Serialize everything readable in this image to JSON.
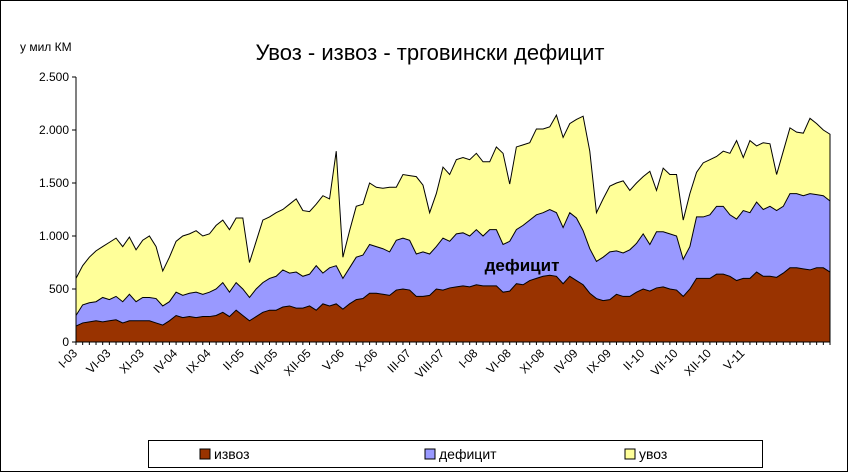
{
  "chart_data": {
    "type": "area",
    "title": "Увоз - извоз - трговински дефицит",
    "y_axis_label": "у мил КМ",
    "annotation": "дефицит",
    "categories": [
      "I-03",
      null,
      null,
      null,
      null,
      "VI-03",
      null,
      null,
      null,
      null,
      "XI-03",
      null,
      null,
      null,
      null,
      "IV-04",
      null,
      null,
      null,
      null,
      "IX-04",
      null,
      null,
      null,
      null,
      "II-05",
      null,
      null,
      null,
      null,
      "VII-05",
      null,
      null,
      null,
      null,
      "XII-05",
      null,
      null,
      null,
      null,
      "V-06",
      null,
      null,
      null,
      null,
      "X-06",
      null,
      null,
      null,
      null,
      "III-07",
      null,
      null,
      null,
      null,
      "VIII-07",
      null,
      null,
      null,
      null,
      "I-08",
      null,
      null,
      null,
      null,
      "VI-08",
      null,
      null,
      null,
      null,
      "XI-08",
      null,
      null,
      null,
      null,
      "IV-09",
      null,
      null,
      null,
      null,
      "IX-09",
      null,
      null,
      null,
      null,
      "II-10",
      null,
      null,
      null,
      null,
      "VII-10",
      null,
      null,
      null,
      null,
      "XII-10",
      null,
      null,
      null,
      null,
      "V-11",
      null,
      null,
      null,
      null,
      null,
      null,
      null,
      null,
      null,
      null,
      null,
      null,
      null
    ],
    "series": [
      {
        "name": "увоз",
        "color": "#ffff99",
        "values": [
          600,
          720,
          800,
          860,
          900,
          940,
          980,
          900,
          990,
          870,
          960,
          1000,
          900,
          670,
          800,
          950,
          1000,
          1020,
          1050,
          1000,
          1020,
          1100,
          1150,
          1060,
          1170,
          1170,
          750,
          950,
          1150,
          1180,
          1220,
          1250,
          1300,
          1350,
          1240,
          1230,
          1300,
          1380,
          1350,
          1800,
          800,
          1050,
          1280,
          1300,
          1500,
          1460,
          1450,
          1460,
          1460,
          1580,
          1570,
          1560,
          1480,
          1220,
          1400,
          1650,
          1580,
          1720,
          1740,
          1720,
          1780,
          1700,
          1700,
          1840,
          1780,
          1490,
          1840,
          1860,
          1880,
          2010,
          2010,
          2030,
          2140,
          1930,
          2060,
          2100,
          2130,
          1800,
          1220,
          1350,
          1470,
          1500,
          1520,
          1430,
          1500,
          1560,
          1610,
          1430,
          1640,
          1580,
          1580,
          1150,
          1400,
          1600,
          1690,
          1720,
          1750,
          1800,
          1780,
          1900,
          1740,
          1900,
          1850,
          1880,
          1870,
          1580,
          1800,
          2020,
          1980,
          1970,
          2110,
          2060,
          2000,
          1960
        ]
      },
      {
        "name": "дефицит",
        "color": "#9999ff",
        "values": [
          250,
          350,
          370,
          380,
          420,
          400,
          430,
          380,
          450,
          380,
          420,
          420,
          410,
          340,
          380,
          470,
          440,
          460,
          470,
          450,
          470,
          500,
          560,
          470,
          560,
          500,
          420,
          500,
          560,
          600,
          620,
          680,
          650,
          660,
          620,
          640,
          720,
          650,
          700,
          720,
          600,
          700,
          800,
          820,
          920,
          900,
          880,
          850,
          960,
          980,
          960,
          830,
          850,
          830,
          900,
          980,
          950,
          1020,
          1030,
          1000,
          1060,
          1000,
          1060,
          1060,
          920,
          950,
          1060,
          1100,
          1150,
          1200,
          1220,
          1250,
          1220,
          1080,
          1220,
          1170,
          1050,
          880,
          760,
          800,
          850,
          860,
          840,
          870,
          930,
          1020,
          920,
          1040,
          1040,
          1020,
          1000,
          780,
          900,
          1180,
          1180,
          1200,
          1280,
          1280,
          1200,
          1160,
          1240,
          1220,
          1320,
          1250,
          1280,
          1240,
          1280,
          1400,
          1400,
          1380,
          1400,
          1390,
          1380,
          1330
        ]
      },
      {
        "name": "извоз",
        "color": "#993300",
        "values": [
          150,
          180,
          190,
          200,
          190,
          200,
          210,
          180,
          200,
          200,
          200,
          200,
          180,
          160,
          200,
          250,
          230,
          240,
          230,
          240,
          240,
          250,
          280,
          240,
          300,
          250,
          200,
          240,
          280,
          300,
          300,
          330,
          340,
          320,
          320,
          340,
          300,
          360,
          340,
          360,
          310,
          360,
          400,
          410,
          460,
          460,
          450,
          440,
          490,
          500,
          490,
          430,
          430,
          440,
          500,
          490,
          510,
          520,
          530,
          520,
          540,
          530,
          530,
          530,
          470,
          480,
          550,
          540,
          580,
          600,
          620,
          630,
          620,
          550,
          620,
          580,
          540,
          460,
          410,
          390,
          400,
          450,
          430,
          430,
          470,
          500,
          480,
          510,
          520,
          500,
          490,
          430,
          500,
          600,
          600,
          600,
          640,
          640,
          620,
          580,
          600,
          600,
          660,
          620,
          620,
          610,
          650,
          700,
          700,
          690,
          680,
          700,
          700,
          660
        ]
      }
    ],
    "legend_order": [
      2,
      1,
      0
    ],
    "ylim": [
      0,
      2500
    ],
    "yticks": [
      0,
      500,
      {
        "value": 1000,
        "label": "1.000"
      },
      {
        "value": 1500,
        "label": "1.500"
      },
      {
        "value": 2000,
        "label": "2.000"
      },
      {
        "value": 2500,
        "label": "2.500"
      }
    ]
  }
}
